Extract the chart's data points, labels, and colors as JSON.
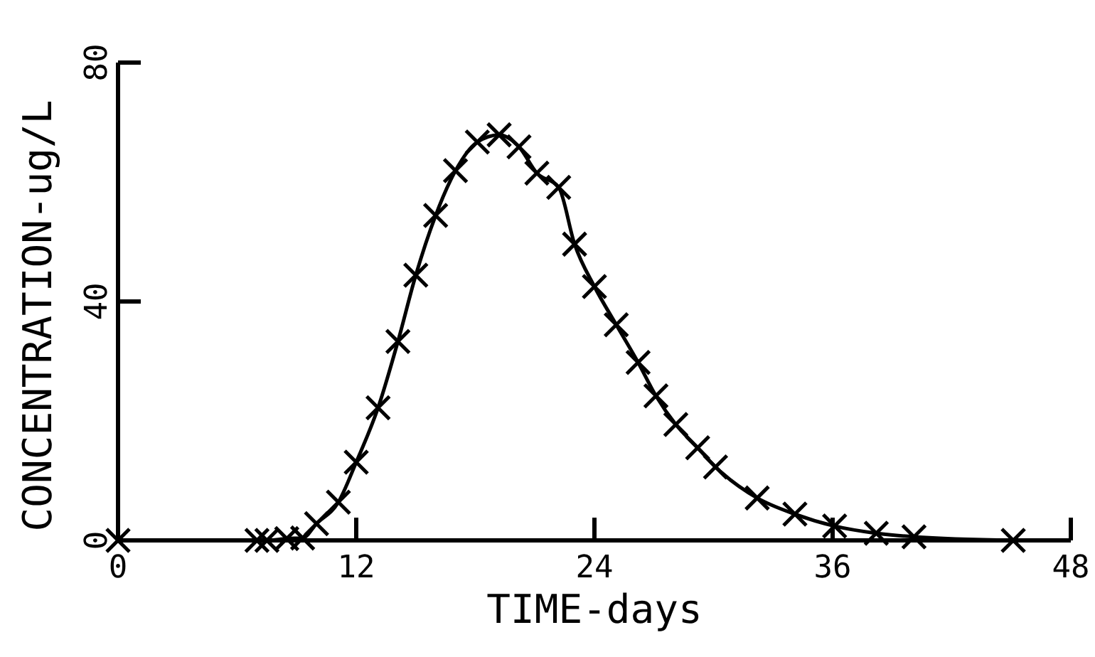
{
  "chart_data": {
    "type": "line",
    "xlabel": "TIME-days",
    "ylabel": "CONCENTRATION-ug/L",
    "xlim": [
      0,
      48
    ],
    "xticks": [
      0,
      12,
      24,
      36,
      48
    ],
    "ylim": [
      0,
      80
    ],
    "yticks": [
      0,
      40,
      80
    ],
    "marker": "cross",
    "line_style": "solid",
    "grid": false,
    "series": [
      {
        "color": "#000000",
        "x": [
          0,
          7.0,
          7.5,
          8.5,
          9.3,
          10.0,
          11.1,
          12.0,
          13.1,
          14.1,
          15.0,
          16.0,
          17.0,
          18.1,
          19.2,
          20.2,
          21.1,
          22.2,
          23.0,
          24.0,
          25.1,
          26.2,
          27.1,
          28.1,
          29.2,
          30.1,
          32.2,
          34.1,
          36.1,
          38.2,
          40.1,
          45.1
        ],
        "values": [
          0,
          0,
          0,
          0.3,
          0.4,
          2.8,
          6.4,
          13.1,
          22.2,
          33.3,
          44.4,
          54.4,
          61.9,
          66.7,
          67.9,
          65.9,
          61.5,
          59.1,
          49.6,
          42.5,
          36.1,
          29.8,
          24.2,
          19.4,
          15.5,
          12.3,
          7.1,
          4.4,
          2.4,
          1.2,
          0.6,
          0
        ]
      }
    ]
  }
}
